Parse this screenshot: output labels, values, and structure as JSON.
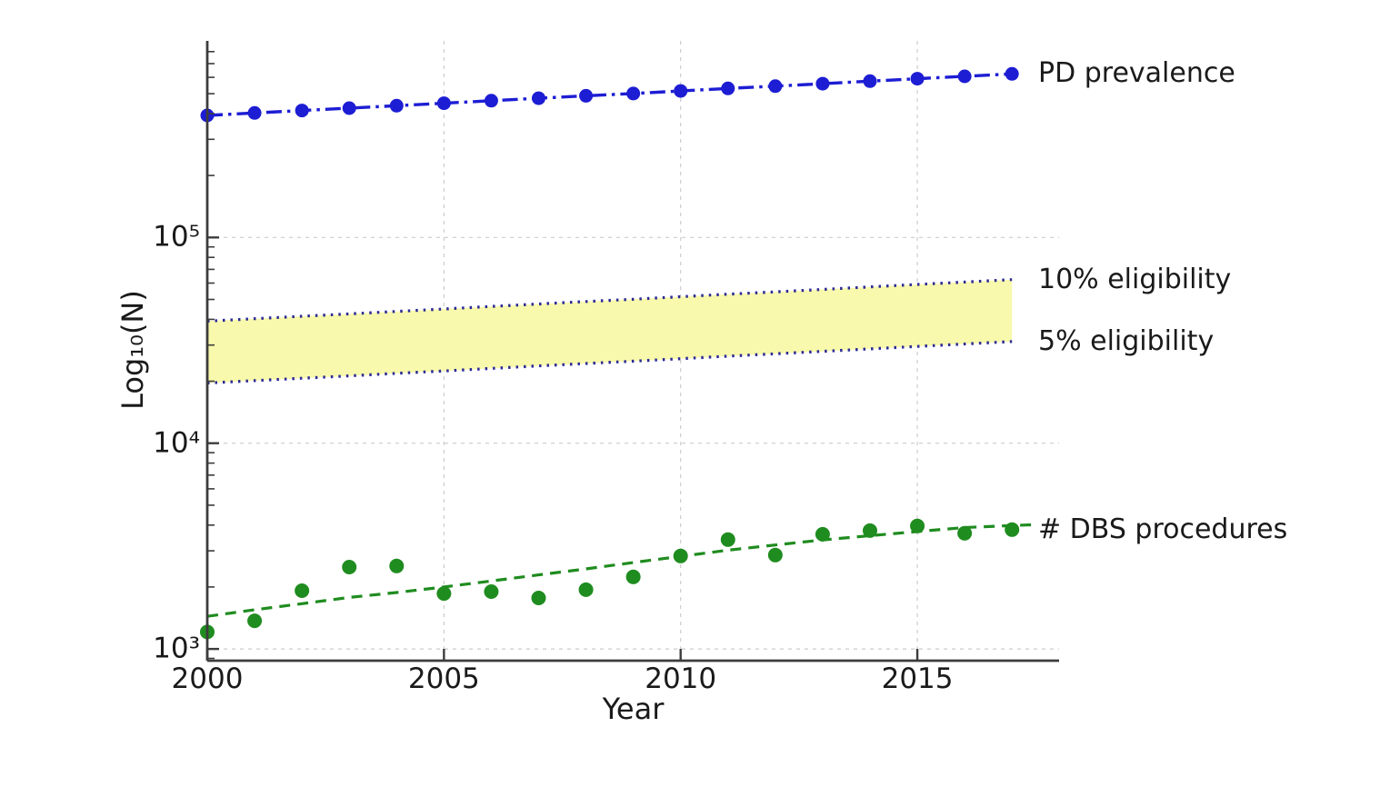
{
  "figure": {
    "background": "#ffffff"
  },
  "axes": {
    "x": {
      "label": "Year",
      "tick_labels": [
        "2000",
        "2005",
        "2010",
        "2015"
      ],
      "tick_values": [
        2000,
        2005,
        2010,
        2015
      ],
      "range": [
        2000,
        2018
      ],
      "gridline_years": [
        2005,
        2010,
        2015
      ]
    },
    "y": {
      "label": "Log₁₀(N)",
      "tick_labels": [
        "10³",
        "10⁴",
        "10⁵"
      ],
      "tick_values": [
        1000,
        10000,
        100000
      ],
      "scale": "log10"
    }
  },
  "annotations": [
    {
      "label": "PD prevalence",
      "series": "PD prevalence"
    },
    {
      "label": "10% eligibility",
      "series": "10% eligibility"
    },
    {
      "label": "5% eligibility",
      "series": "5% eligibility"
    },
    {
      "label": "# DBS procedures",
      "series": "# DBS procedures"
    }
  ],
  "colors": {
    "blue_line": "#1d1dd4",
    "band_edge": "#2b2b94",
    "band_fill": "#f9f9ad",
    "green": "#1f8c1f",
    "grid": "#cccccc",
    "spine": "#3c3c3c",
    "text": "#1a1a1a"
  },
  "chart_data": {
    "type": "line",
    "title": "",
    "xlabel": "Year",
    "ylabel": "Log₁₀(N)",
    "x_range": [
      2000,
      2018
    ],
    "ylim_log10": [
      2.94,
      5.95
    ],
    "grid": true,
    "legend_position": "right-annotations",
    "x": [
      2000,
      2001,
      2002,
      2003,
      2004,
      2005,
      2006,
      2007,
      2008,
      2009,
      2010,
      2011,
      2012,
      2013,
      2014,
      2015,
      2016,
      2017
    ],
    "series": [
      {
        "name": "PD prevalence",
        "style": "dashdot-with-markers",
        "color": "#1d1dd4",
        "values": [
          392000,
          403000,
          414000,
          425000,
          437000,
          449000,
          462000,
          475000,
          488000,
          501000,
          515000,
          530000,
          544000,
          559000,
          575000,
          591000,
          607000,
          624000
        ]
      },
      {
        "name": "10% eligibility",
        "style": "dotted-band-upper-edge",
        "color": "#2b2b94",
        "values": [
          39200,
          40300,
          41400,
          42500,
          43700,
          44900,
          46200,
          47500,
          48800,
          50100,
          51500,
          53000,
          54400,
          55900,
          57500,
          59100,
          60700,
          62400
        ]
      },
      {
        "name": "5% eligibility",
        "style": "dotted-band-lower-edge",
        "color": "#2b2b94",
        "values": [
          19600,
          20150,
          20700,
          21250,
          21850,
          22450,
          23100,
          23750,
          24400,
          25050,
          25750,
          26500,
          27200,
          27950,
          28750,
          29550,
          30350,
          31200
        ]
      },
      {
        "name": "# DBS procedures",
        "style": "scatter",
        "color": "#1f8c1f",
        "values": [
          1210,
          1370,
          1920,
          2500,
          2530,
          1860,
          1900,
          1770,
          1940,
          2240,
          2830,
          3400,
          2860,
          3610,
          3760,
          3960,
          3650,
          3800
        ]
      },
      {
        "name": "DBS trend",
        "style": "dashed",
        "color": "#1f8c1f",
        "x": [
          2000,
          2001,
          2002,
          2003,
          2004,
          2005,
          2006,
          2007,
          2008,
          2009,
          2010,
          2011,
          2012,
          2013,
          2014,
          2015,
          2016,
          2017,
          2017.5
        ],
        "values": [
          1440,
          1550,
          1660,
          1780,
          1880,
          2000,
          2140,
          2290,
          2450,
          2630,
          2820,
          3020,
          3200,
          3390,
          3550,
          3720,
          3890,
          3980,
          4020
        ]
      }
    ],
    "band": {
      "between": [
        "10% eligibility",
        "5% eligibility"
      ],
      "fill": "#f9f9ad"
    }
  }
}
